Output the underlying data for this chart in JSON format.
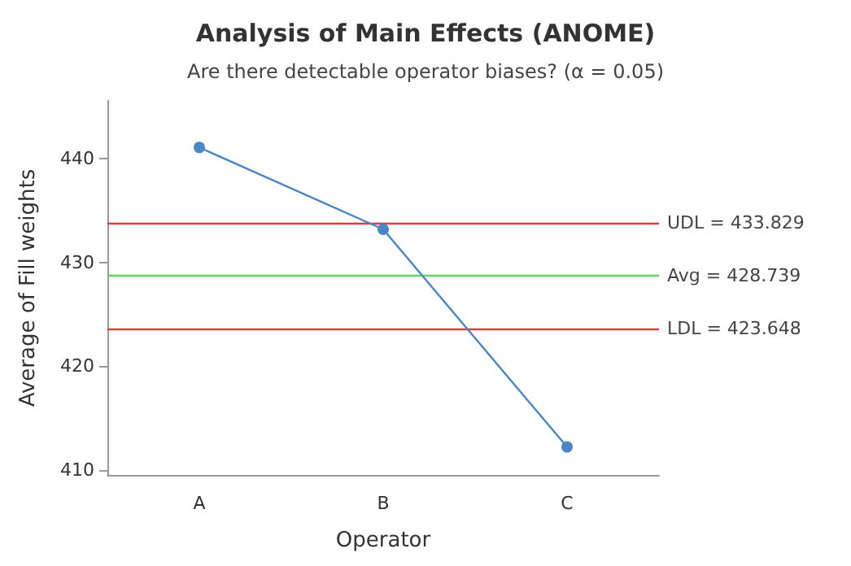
{
  "chart_data": {
    "type": "line",
    "title": "Analysis of Main Effects (ANOME)",
    "subtitle": "Are there detectable operator biases? (α = 0.05)",
    "xlabel": "Operator",
    "ylabel": "Average of Fill weights",
    "categories": [
      "A",
      "B",
      "C"
    ],
    "series": [
      {
        "color": "#4a86c8",
        "values": [
          441.1,
          433.2,
          412.2
        ]
      }
    ],
    "marker": "circle",
    "ylim": [
      409.5,
      445.6
    ],
    "yticks": [
      410,
      420,
      430,
      440
    ],
    "grid": false,
    "ref_lines": [
      {
        "axis": "y",
        "value": 433.829,
        "label": "UDL = 433.829",
        "color": "#e03c3c",
        "line_style": "solid"
      },
      {
        "axis": "y",
        "value": 428.739,
        "label": "Avg = 428.739",
        "color": "#5fd45f",
        "line_style": "solid"
      },
      {
        "axis": "y",
        "value": 423.648,
        "label": "LDL = 423.648",
        "color": "#e03c3c",
        "line_style": "solid"
      }
    ]
  }
}
